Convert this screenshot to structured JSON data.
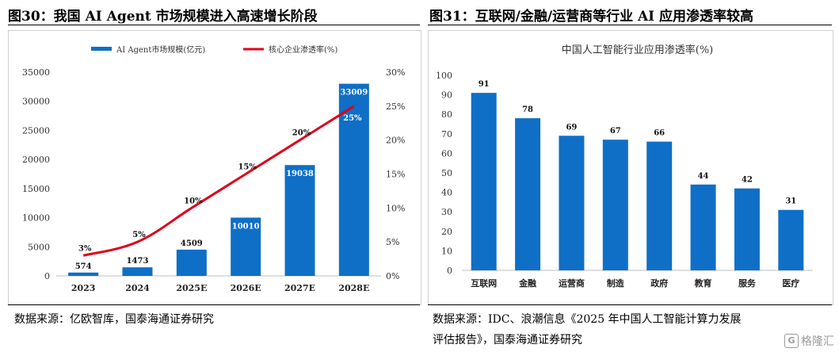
{
  "left": {
    "title": "图30：我国 AI Agent 市场规模进入高速增长阶段",
    "source": "数据来源：亿欧智库，国泰海通证券研究"
  },
  "right": {
    "title": "图31：互联网/金融/运营商等行业 AI 应用渗透率较高",
    "source_line1": "数据来源：IDC、浪潮信息《2025 年中国人工智能计算力发展",
    "source_line2": "评估报告》，国泰海通证券研究"
  },
  "watermark": {
    "text": "格隆汇",
    "icon": "g-logo-icon"
  },
  "chart_data": [
    {
      "type": "bar",
      "title": "",
      "categories": [
        "2023",
        "2024",
        "2025E",
        "2026E",
        "2027E",
        "2028E"
      ],
      "series": [
        {
          "name": "AI Agent市场规模(亿元)",
          "kind": "bar",
          "axis": "left",
          "color": "#0f6fc6",
          "values": [
            574,
            1473,
            4509,
            10010,
            19038,
            33009
          ],
          "labels": [
            "574",
            "1473",
            "4509",
            "10010",
            "19038",
            "33009"
          ]
        },
        {
          "name": "核心企业渗透率(%)",
          "kind": "line",
          "axis": "right",
          "color": "#e0001b",
          "values": [
            3,
            5,
            10,
            15,
            20,
            25
          ],
          "labels": [
            "3%",
            "5%",
            "10%",
            "15%",
            "20%",
            "25%"
          ]
        }
      ],
      "ylim": [
        0,
        35000
      ],
      "yticks": [
        "0",
        "5000",
        "10000",
        "15000",
        "20000",
        "25000",
        "30000",
        "35000"
      ],
      "y2lim": [
        0,
        30
      ],
      "y2ticks": [
        "0%",
        "5%",
        "10%",
        "15%",
        "20%",
        "25%",
        "30%"
      ],
      "legend": "top-center",
      "grid": false
    },
    {
      "type": "bar",
      "title": "中国人工智能行业应用渗透率(%)",
      "categories": [
        "互联网",
        "金融",
        "运营商",
        "制造",
        "政府",
        "教育",
        "服务",
        "医疗"
      ],
      "values": [
        91,
        78,
        69,
        67,
        66,
        44,
        42,
        31
      ],
      "color": "#0f6fc6",
      "ylim": [
        0,
        100
      ],
      "yticks": [
        "0",
        "10",
        "20",
        "30",
        "40",
        "50",
        "60",
        "70",
        "80",
        "90",
        "100"
      ],
      "grid": false
    }
  ]
}
